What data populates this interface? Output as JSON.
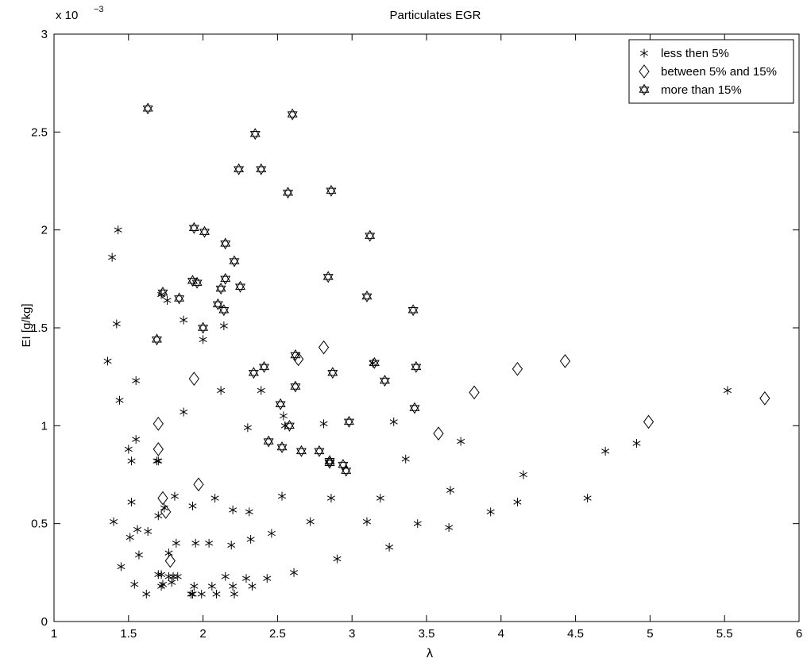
{
  "chart_data": {
    "type": "scatter",
    "title": "Particulates EGR",
    "xlabel": "λ",
    "ylabel": "EI [g/kg]",
    "y_exponent_label": "x 10",
    "y_exponent_power": "−3",
    "xlim": [
      1,
      6
    ],
    "ylim": [
      0,
      3
    ],
    "y_scale": 0.001,
    "x_ticks": [
      1,
      1.5,
      2,
      2.5,
      3,
      3.5,
      4,
      4.5,
      5,
      5.5,
      6
    ],
    "x_tick_labels": [
      "1",
      "1.5",
      "2",
      "2.5",
      "3",
      "3.5",
      "4",
      "4.5",
      "5",
      "5.5",
      "6"
    ],
    "y_ticks": [
      0,
      0.5,
      1,
      1.5,
      2,
      2.5,
      3
    ],
    "y_tick_labels": [
      "0",
      "0.5",
      "1",
      "1.5",
      "2",
      "2.5",
      "3"
    ],
    "grid": false,
    "legend_position": "top-right",
    "series": [
      {
        "name": "less then 5%",
        "marker": "asterisk",
        "points": [
          [
            1.36,
            1.33
          ],
          [
            1.39,
            1.86
          ],
          [
            1.4,
            0.51
          ],
          [
            1.42,
            1.52
          ],
          [
            1.43,
            2.0
          ],
          [
            1.44,
            1.13
          ],
          [
            1.45,
            0.28
          ],
          [
            1.5,
            0.88
          ],
          [
            1.51,
            0.43
          ],
          [
            1.52,
            0.82
          ],
          [
            1.52,
            0.61
          ],
          [
            1.54,
            0.19
          ],
          [
            1.55,
            1.23
          ],
          [
            1.55,
            0.93
          ],
          [
            1.56,
            0.47
          ],
          [
            1.57,
            0.34
          ],
          [
            1.62,
            0.14
          ],
          [
            1.63,
            0.46
          ],
          [
            1.69,
            0.82
          ],
          [
            1.7,
            0.82
          ],
          [
            1.7,
            0.54
          ],
          [
            1.7,
            0.24
          ],
          [
            1.72,
            0.24
          ],
          [
            1.72,
            1.67
          ],
          [
            1.72,
            0.18
          ],
          [
            1.73,
            0.19
          ],
          [
            1.74,
            0.58
          ],
          [
            1.76,
            1.64
          ],
          [
            1.77,
            0.35
          ],
          [
            1.77,
            0.23
          ],
          [
            1.79,
            0.2
          ],
          [
            1.8,
            0.23
          ],
          [
            1.81,
            0.64
          ],
          [
            1.82,
            0.4
          ],
          [
            1.83,
            0.23
          ],
          [
            1.87,
            1.54
          ],
          [
            1.87,
            1.07
          ],
          [
            1.92,
            0.14
          ],
          [
            1.93,
            0.59
          ],
          [
            1.93,
            0.14
          ],
          [
            1.94,
            0.18
          ],
          [
            1.95,
            0.4
          ],
          [
            1.99,
            0.14
          ],
          [
            2.0,
            1.44
          ],
          [
            2.04,
            0.4
          ],
          [
            2.06,
            0.18
          ],
          [
            2.08,
            0.63
          ],
          [
            2.09,
            0.14
          ],
          [
            2.12,
            1.18
          ],
          [
            2.14,
            1.51
          ],
          [
            2.15,
            0.23
          ],
          [
            2.19,
            0.39
          ],
          [
            2.2,
            0.57
          ],
          [
            2.2,
            0.18
          ],
          [
            2.21,
            0.14
          ],
          [
            2.29,
            0.22
          ],
          [
            2.3,
            0.99
          ],
          [
            2.31,
            0.56
          ],
          [
            2.32,
            0.42
          ],
          [
            2.33,
            0.18
          ],
          [
            2.39,
            1.18
          ],
          [
            2.43,
            0.22
          ],
          [
            2.46,
            0.45
          ],
          [
            2.53,
            0.64
          ],
          [
            2.54,
            1.05
          ],
          [
            2.55,
            1.0
          ],
          [
            2.61,
            0.25
          ],
          [
            2.72,
            0.51
          ],
          [
            2.81,
            1.01
          ],
          [
            2.86,
            0.63
          ],
          [
            2.9,
            0.32
          ],
          [
            3.1,
            0.51
          ],
          [
            3.14,
            1.32
          ],
          [
            3.19,
            0.63
          ],
          [
            3.25,
            0.38
          ],
          [
            3.28,
            1.02
          ],
          [
            3.36,
            0.83
          ],
          [
            3.44,
            0.5
          ],
          [
            3.65,
            0.48
          ],
          [
            3.66,
            0.67
          ],
          [
            3.73,
            0.92
          ],
          [
            3.93,
            0.56
          ],
          [
            4.11,
            0.61
          ],
          [
            4.15,
            0.75
          ],
          [
            4.58,
            0.63
          ],
          [
            4.7,
            0.87
          ],
          [
            4.91,
            0.91
          ],
          [
            5.52,
            1.18
          ]
        ]
      },
      {
        "name": "between 5% and 15%",
        "marker": "diamond",
        "points": [
          [
            1.7,
            1.01
          ],
          [
            1.7,
            0.88
          ],
          [
            1.73,
            0.63
          ],
          [
            1.75,
            0.56
          ],
          [
            1.78,
            0.31
          ],
          [
            1.94,
            1.24
          ],
          [
            1.97,
            0.7
          ],
          [
            2.64,
            1.34
          ],
          [
            2.81,
            1.4
          ],
          [
            3.58,
            0.96
          ],
          [
            3.82,
            1.17
          ],
          [
            4.11,
            1.29
          ],
          [
            4.43,
            1.33
          ],
          [
            4.99,
            1.02
          ],
          [
            5.77,
            1.14
          ]
        ]
      },
      {
        "name": "more than 15%",
        "marker": "hexagram",
        "points": [
          [
            1.63,
            2.62
          ],
          [
            1.69,
            1.44
          ],
          [
            1.73,
            1.68
          ],
          [
            1.84,
            1.65
          ],
          [
            1.93,
            1.74
          ],
          [
            1.94,
            2.01
          ],
          [
            1.96,
            1.73
          ],
          [
            2.0,
            1.5
          ],
          [
            2.01,
            1.99
          ],
          [
            2.1,
            1.62
          ],
          [
            2.12,
            1.7
          ],
          [
            2.14,
            1.59
          ],
          [
            2.15,
            1.93
          ],
          [
            2.15,
            1.75
          ],
          [
            2.21,
            1.84
          ],
          [
            2.24,
            2.31
          ],
          [
            2.25,
            1.71
          ],
          [
            2.34,
            1.27
          ],
          [
            2.35,
            2.49
          ],
          [
            2.39,
            2.31
          ],
          [
            2.41,
            1.3
          ],
          [
            2.44,
            0.92
          ],
          [
            2.52,
            1.11
          ],
          [
            2.53,
            0.89
          ],
          [
            2.57,
            2.19
          ],
          [
            2.58,
            1.0
          ],
          [
            2.6,
            2.59
          ],
          [
            2.62,
            1.2
          ],
          [
            2.62,
            1.36
          ],
          [
            2.66,
            0.87
          ],
          [
            2.78,
            0.87
          ],
          [
            2.84,
            1.76
          ],
          [
            2.85,
            0.82
          ],
          [
            2.85,
            0.81
          ],
          [
            2.86,
            2.2
          ],
          [
            2.87,
            1.27
          ],
          [
            2.94,
            0.8
          ],
          [
            2.96,
            0.77
          ],
          [
            2.98,
            1.02
          ],
          [
            3.1,
            1.66
          ],
          [
            3.12,
            1.97
          ],
          [
            3.15,
            1.32
          ],
          [
            3.22,
            1.23
          ],
          [
            3.41,
            1.59
          ],
          [
            3.42,
            1.09
          ],
          [
            3.43,
            1.3
          ]
        ]
      }
    ]
  }
}
